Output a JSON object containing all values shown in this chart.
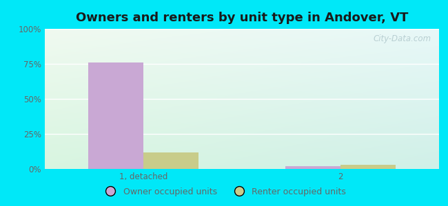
{
  "title": "Owners and renters by unit type in Andover, VT",
  "categories": [
    "1, detached",
    "2"
  ],
  "owner_values": [
    76,
    2
  ],
  "renter_values": [
    12,
    3
  ],
  "owner_color": "#c9a8d4",
  "renter_color": "#c8cc8a",
  "bar_width": 0.28,
  "ylim": [
    0,
    100
  ],
  "yticks": [
    0,
    25,
    50,
    75,
    100
  ],
  "ytick_labels": [
    "0%",
    "25%",
    "50%",
    "75%",
    "100%"
  ],
  "bg_color_topleft": "#f0faf0",
  "bg_color_topright": "#e8f8f8",
  "bg_color_bottomleft": "#d8f5e0",
  "bg_color_bottomright": "#d0f0e8",
  "outer_bg": "#00e8f8",
  "title_fontsize": 13,
  "tick_fontsize": 8.5,
  "legend_owner": "Owner occupied units",
  "legend_renter": "Renter occupied units",
  "watermark": "City-Data.com",
  "grid_color": "#e0e8e0",
  "tick_color": "#666666",
  "title_color": "#1a1a1a"
}
